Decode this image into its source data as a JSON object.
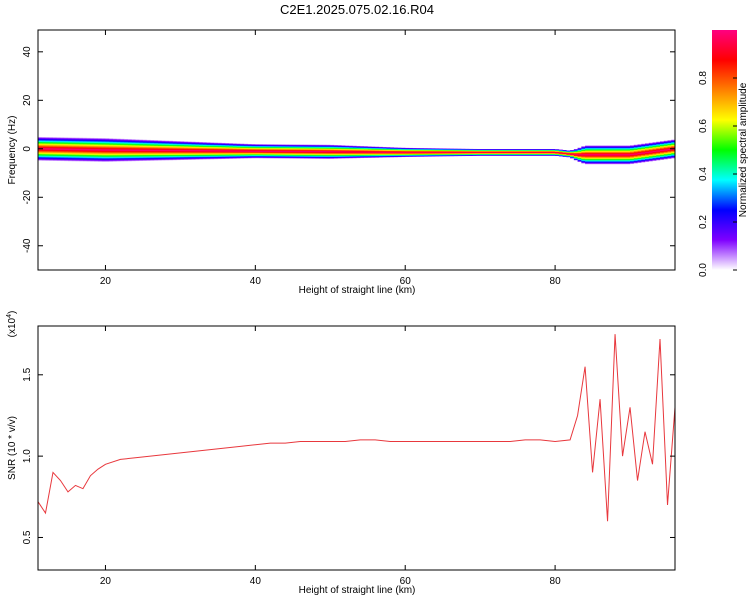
{
  "title": "C2E1.2025.075.02.16.R04",
  "chart_data": [
    {
      "type": "heatmap",
      "xlabel": "Height of straight line (km)",
      "ylabel": "Frequency (Hz)",
      "xlim": [
        11,
        96
      ],
      "ylim": [
        -50,
        49
      ],
      "xticks": [
        20,
        40,
        60,
        80
      ],
      "yticks": [
        -40,
        -20,
        0,
        20,
        40
      ],
      "band": {
        "center_hz": [
          [
            11,
            0.0
          ],
          [
            20,
            -0.5
          ],
          [
            40,
            -1.0
          ],
          [
            60,
            -1.5
          ],
          [
            80,
            -1.5
          ],
          [
            83,
            -2.5
          ],
          [
            90,
            -2.5
          ],
          [
            96,
            0.0
          ]
        ],
        "half_width_hz": [
          [
            11,
            5
          ],
          [
            20,
            5
          ],
          [
            30,
            4
          ],
          [
            40,
            3
          ],
          [
            50,
            3
          ],
          [
            60,
            2
          ],
          [
            70,
            1.5
          ],
          [
            82,
            1.5
          ],
          [
            84,
            4
          ],
          [
            96,
            4
          ]
        ]
      },
      "colorbar": {
        "label": "Normalized spectral amplitude",
        "range": [
          0,
          1
        ],
        "ticks": [
          "0.0",
          "0.2",
          "0.4",
          "0.6",
          "0.8"
        ],
        "colors": [
          "#ffffff",
          "#7f00ff",
          "#0000ff",
          "#00ffff",
          "#00ff00",
          "#ffff00",
          "#ff8000",
          "#ff0000",
          "#ff0080"
        ]
      }
    },
    {
      "type": "line",
      "xlabel": "Height of straight line (km)",
      "ylabel": "SNR (10 * v/v)",
      "multiplier": "(x10",
      "exponent": "4",
      "multiplier_close": ")",
      "xlim": [
        11,
        96
      ],
      "ylim": [
        0.3,
        1.8
      ],
      "xticks": [
        20,
        40,
        60,
        80
      ],
      "yticks": [
        "0.5",
        "1.0",
        "1.5"
      ],
      "color": "#e8383d",
      "series": [
        {
          "x": [
            11,
            12,
            13,
            14,
            15,
            16,
            17,
            18,
            19,
            20,
            22,
            24,
            26,
            28,
            30,
            32,
            34,
            36,
            38,
            40,
            42,
            44,
            46,
            48,
            50,
            52,
            54,
            56,
            58,
            60,
            62,
            64,
            66,
            68,
            70,
            72,
            74,
            76,
            78,
            80,
            82,
            83,
            84,
            85,
            86,
            87,
            88,
            89,
            90,
            91,
            92,
            93,
            94,
            95,
            96
          ],
          "y": [
            0.72,
            0.65,
            0.9,
            0.85,
            0.78,
            0.82,
            0.8,
            0.88,
            0.92,
            0.95,
            0.98,
            0.99,
            1.0,
            1.01,
            1.02,
            1.03,
            1.04,
            1.05,
            1.06,
            1.07,
            1.08,
            1.08,
            1.09,
            1.09,
            1.09,
            1.09,
            1.1,
            1.1,
            1.09,
            1.09,
            1.09,
            1.09,
            1.09,
            1.09,
            1.09,
            1.09,
            1.09,
            1.1,
            1.1,
            1.09,
            1.1,
            1.25,
            1.55,
            0.9,
            1.35,
            0.6,
            1.75,
            1.0,
            1.3,
            0.85,
            1.15,
            0.95,
            1.72,
            0.7,
            1.3
          ]
        }
      ]
    }
  ]
}
